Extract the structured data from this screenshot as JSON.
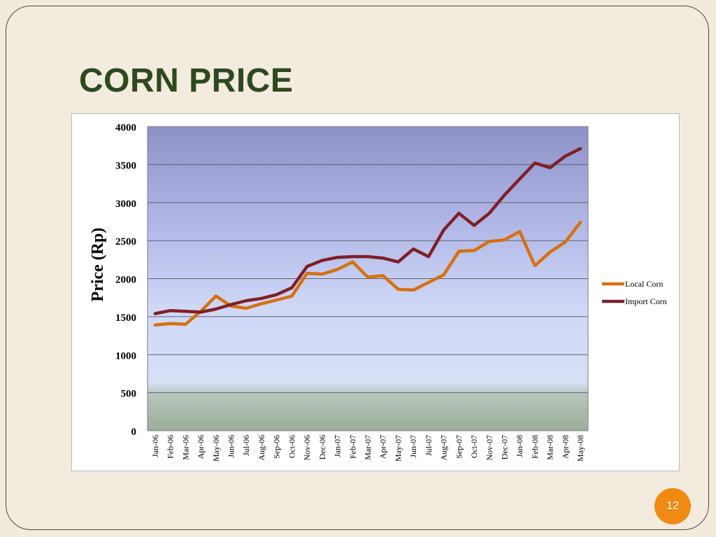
{
  "slide": {
    "title": "CORN PRICE",
    "page_number": "12"
  },
  "colors": {
    "background": "#f3ebdd",
    "title": "#2d4a1e",
    "badge": "#f08a14",
    "local_corn": "#d6700e",
    "import_corn": "#7f1f28"
  },
  "chart_data": {
    "type": "line",
    "title": "",
    "xlabel": "",
    "ylabel": "Price (Rp)",
    "ylim": [
      0,
      4000
    ],
    "yticks": [
      "0",
      "500",
      "1000",
      "1500",
      "2000",
      "2500",
      "3000",
      "3500",
      "4000"
    ],
    "grid": true,
    "legend_position": "right",
    "categories": [
      "Jan-06",
      "Feb-06",
      "Mar-06",
      "Apr-06",
      "May-06",
      "Jun-06",
      "Jul-06",
      "Aug-06",
      "Sep-06",
      "Oct-06",
      "Nov-06",
      "Dec-06",
      "Jan-07",
      "Feb-07",
      "Mar-07",
      "Apr-07",
      "May-07",
      "Jun-07",
      "Jul-07",
      "Aug-07",
      "Sep-07",
      "Oct-07",
      "Nov-07",
      "Dec-07",
      "Jan-08",
      "Feb-08",
      "Mar-08",
      "Apr-08",
      "May-08"
    ],
    "series": [
      {
        "name": "Local Corn",
        "color": "#d6700e",
        "values": [
          1390,
          1410,
          1400,
          1570,
          1770,
          1640,
          1610,
          1670,
          1720,
          1770,
          2070,
          2060,
          2120,
          2220,
          2020,
          2040,
          1860,
          1850,
          1950,
          2050,
          2360,
          2370,
          2490,
          2510,
          2620,
          2170,
          2350,
          2480,
          2740
        ]
      },
      {
        "name": "Import Corn",
        "color": "#7f1f28",
        "values": [
          1540,
          1580,
          1570,
          1560,
          1600,
          1660,
          1710,
          1740,
          1790,
          1880,
          2160,
          2240,
          2280,
          2290,
          2290,
          2270,
          2220,
          2390,
          2290,
          2640,
          2860,
          2700,
          2860,
          3100,
          3310,
          3520,
          3460,
          3610,
          3710
        ]
      }
    ]
  }
}
